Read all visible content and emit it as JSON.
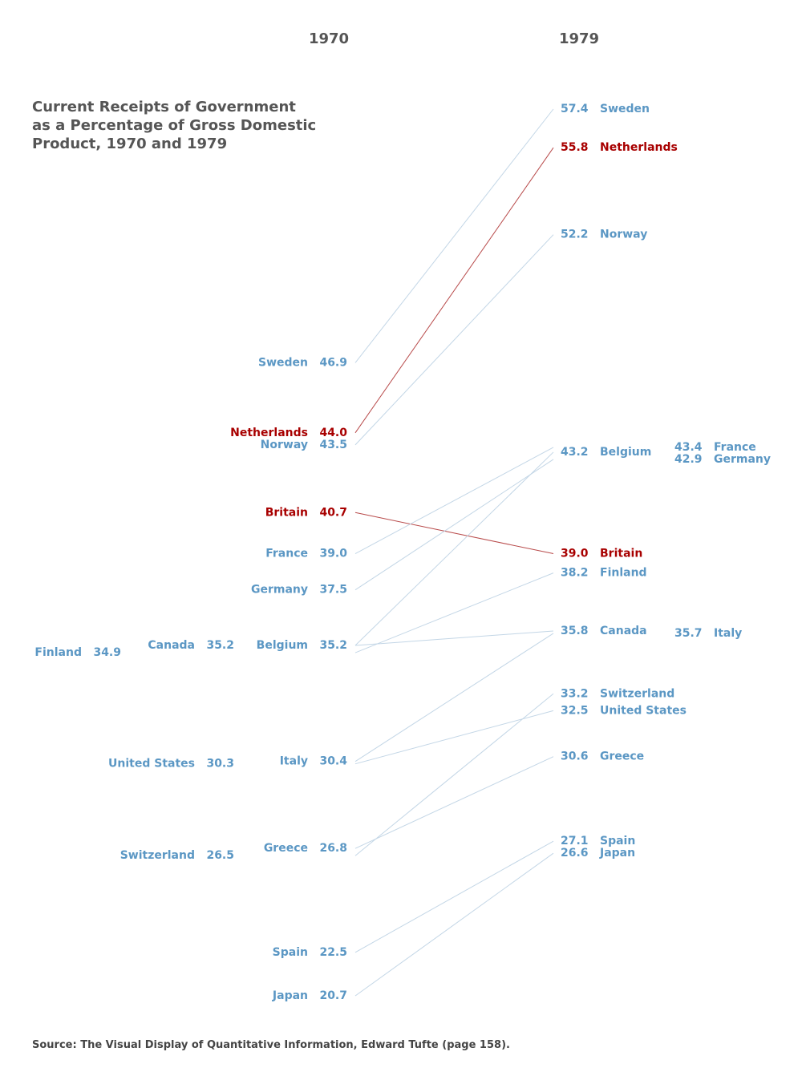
{
  "chart_data": {
    "type": "slope",
    "title": "Current Receipts of Government as a Percentage of Gross Domestic Product, 1970 and 1979",
    "source": "Source: The Visual Display of Quantitative Information, Edward Tufte (page 158).",
    "categories": [
      "Sweden",
      "Netherlands",
      "Norway",
      "Britain",
      "France",
      "Germany",
      "Belgium",
      "Canada",
      "Finland",
      "Italy",
      "United States",
      "Greece",
      "Switzerland",
      "Spain",
      "Japan"
    ],
    "colors": [
      "#5b97c4",
      "#a80000",
      "#5b97c4",
      "#a80000",
      "#5b97c4",
      "#5b97c4",
      "#5b97c4",
      "#5b97c4",
      "#5b97c4",
      "#5b97c4",
      "#5b97c4",
      "#5b97c4",
      "#5b97c4",
      "#5b97c4",
      "#5b97c4"
    ],
    "series": [
      {
        "name": "1970",
        "values": [
          46.9,
          44.0,
          43.5,
          40.7,
          39.0,
          37.5,
          35.2,
          35.2,
          34.9,
          30.4,
          30.3,
          26.8,
          26.5,
          22.5,
          20.7
        ],
        "value_labels": [
          "46.9",
          "44.0",
          "43.5",
          "40.7",
          "39.0",
          "37.5",
          "35.2",
          "35.2",
          "34.9",
          "30.4",
          "30.3",
          "26.8",
          "26.5",
          "22.5",
          "20.7"
        ]
      },
      {
        "name": "1979",
        "values": [
          57.4,
          55.8,
          52.2,
          39.0,
          43.4,
          42.9,
          43.2,
          35.8,
          38.2,
          35.7,
          32.5,
          30.6,
          33.2,
          27.1,
          26.6
        ],
        "value_labels": [
          "57.4",
          "55.8",
          "52.2",
          "39.0",
          "43.4",
          "42.9",
          "43.2",
          "35.8",
          "38.2",
          "35.7",
          "32.5",
          "30.6",
          "33.2",
          "27.1",
          "26.6"
        ]
      }
    ]
  }
}
